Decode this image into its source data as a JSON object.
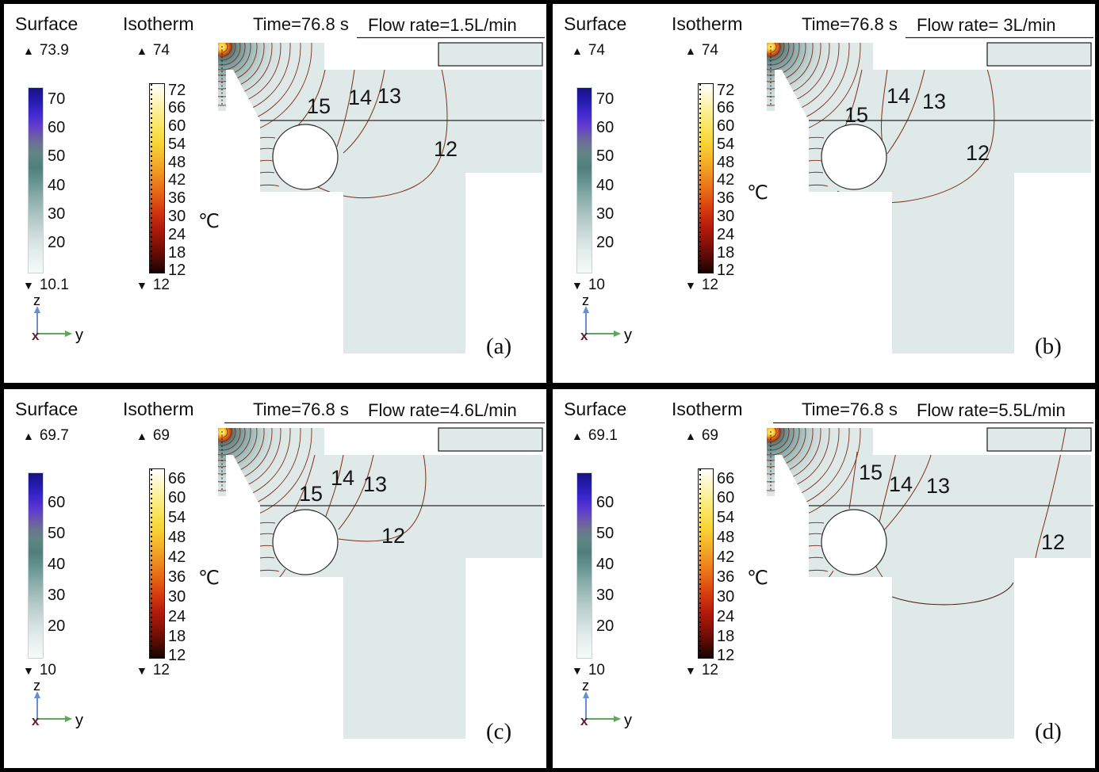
{
  "glyphs": {
    "up": "▲",
    "down": "▼"
  },
  "panels": [
    {
      "letter": "(a)",
      "surface_label": "Surface",
      "isotherm_label": "Isotherm",
      "time": "Time=76.8 s",
      "flow": "Flow rate=1.5L/min",
      "unit": "℃",
      "surface": {
        "max": "73.9",
        "min": "10.1",
        "ticks": [
          "70",
          "60",
          "50",
          "40",
          "30",
          "20"
        ]
      },
      "isotherm": {
        "max": "74",
        "min": "12",
        "ticks": [
          "72",
          "66",
          "60",
          "54",
          "48",
          "42",
          "36",
          "30",
          "24",
          "18",
          "12"
        ]
      },
      "contours": [
        "15",
        "14",
        "13",
        "12"
      ],
      "axes": {
        "x": "x",
        "y": "y",
        "z": "z"
      }
    },
    {
      "letter": "(b)",
      "surface_label": "Surface",
      "isotherm_label": "Isotherm",
      "time": "Time=76.8 s",
      "flow": "Flow rate= 3L/min",
      "unit": "℃",
      "surface": {
        "max": "74",
        "min": "10",
        "ticks": [
          "70",
          "60",
          "50",
          "40",
          "30",
          "20"
        ]
      },
      "isotherm": {
        "max": "74",
        "min": "12",
        "ticks": [
          "72",
          "66",
          "60",
          "54",
          "48",
          "42",
          "36",
          "30",
          "24",
          "18",
          "12"
        ]
      },
      "contours": [
        "15",
        "14",
        "13",
        "12"
      ],
      "axes": {
        "x": "x",
        "y": "y",
        "z": "z"
      }
    },
    {
      "letter": "(c)",
      "surface_label": "Surface",
      "isotherm_label": "Isotherm",
      "time": "Time=76.8 s",
      "flow": "Flow rate=4.6L/min",
      "unit": "℃",
      "surface": {
        "max": "69.7",
        "min": "10",
        "ticks": [
          "60",
          "50",
          "40",
          "30",
          "20"
        ]
      },
      "isotherm": {
        "max": "69",
        "min": "12",
        "ticks": [
          "66",
          "60",
          "54",
          "48",
          "42",
          "36",
          "30",
          "24",
          "18",
          "12"
        ]
      },
      "contours": [
        "15",
        "14",
        "13",
        "12"
      ],
      "axes": {
        "x": "x",
        "y": "y",
        "z": "z"
      }
    },
    {
      "letter": "(d)",
      "surface_label": "Surface",
      "isotherm_label": "Isotherm",
      "time": "Time=76.8 s",
      "flow": "Flow rate=5.5L/min",
      "unit": "℃",
      "surface": {
        "max": "69.1",
        "min": "10",
        "ticks": [
          "60",
          "50",
          "40",
          "30",
          "20"
        ]
      },
      "isotherm": {
        "max": "69",
        "min": "12",
        "ticks": [
          "66",
          "60",
          "54",
          "48",
          "42",
          "36",
          "30",
          "24",
          "18",
          "12"
        ]
      },
      "contours": [
        "15",
        "14",
        "13",
        "12"
      ],
      "axes": {
        "x": "x",
        "y": "y",
        "z": "z"
      }
    }
  ],
  "colors": {
    "body_teal": "#dfe9e8",
    "contour_red": "#7b2d1e",
    "hotspot_yellow": "#ffd84a",
    "axis_z_blue": "#6a8fd0",
    "axis_y_green": "#5ca75c",
    "axis_x_maroon": "#5e1b28"
  },
  "chart_data": [
    {
      "panel": "a",
      "type": "heatmap",
      "title": "Isotherm contour plot",
      "time_s": 76.8,
      "flow_rate_L_per_min": 1.5,
      "surface_temp_max_C": 73.9,
      "surface_temp_min_C": 10.1,
      "isotherm_max_C": 74,
      "isotherm_min_C": 12,
      "labeled_isotherms_C": [
        15,
        14,
        13,
        12
      ],
      "surface_colorbar_ticks_C": [
        70,
        60,
        50,
        40,
        30,
        20
      ],
      "isotherm_colorbar_ticks_C": [
        72,
        66,
        60,
        54,
        48,
        42,
        36,
        30,
        24,
        18,
        12
      ]
    },
    {
      "panel": "b",
      "type": "heatmap",
      "title": "Isotherm contour plot",
      "time_s": 76.8,
      "flow_rate_L_per_min": 3,
      "surface_temp_max_C": 74,
      "surface_temp_min_C": 10,
      "isotherm_max_C": 74,
      "isotherm_min_C": 12,
      "labeled_isotherms_C": [
        15,
        14,
        13,
        12
      ],
      "surface_colorbar_ticks_C": [
        70,
        60,
        50,
        40,
        30,
        20
      ],
      "isotherm_colorbar_ticks_C": [
        72,
        66,
        60,
        54,
        48,
        42,
        36,
        30,
        24,
        18,
        12
      ]
    },
    {
      "panel": "c",
      "type": "heatmap",
      "title": "Isotherm contour plot",
      "time_s": 76.8,
      "flow_rate_L_per_min": 4.6,
      "surface_temp_max_C": 69.7,
      "surface_temp_min_C": 10,
      "isotherm_max_C": 69,
      "isotherm_min_C": 12,
      "labeled_isotherms_C": [
        15,
        14,
        13,
        12
      ],
      "surface_colorbar_ticks_C": [
        60,
        50,
        40,
        30,
        20
      ],
      "isotherm_colorbar_ticks_C": [
        66,
        60,
        54,
        48,
        42,
        36,
        30,
        24,
        18,
        12
      ]
    },
    {
      "panel": "d",
      "type": "heatmap",
      "title": "Isotherm contour plot",
      "time_s": 76.8,
      "flow_rate_L_per_min": 5.5,
      "surface_temp_max_C": 69.1,
      "surface_temp_min_C": 10,
      "isotherm_max_C": 69,
      "isotherm_min_C": 12,
      "labeled_isotherms_C": [
        15,
        14,
        13,
        12
      ],
      "surface_colorbar_ticks_C": [
        60,
        50,
        40,
        30,
        20
      ],
      "isotherm_colorbar_ticks_C": [
        66,
        60,
        54,
        48,
        42,
        36,
        30,
        24,
        18,
        12
      ]
    }
  ]
}
